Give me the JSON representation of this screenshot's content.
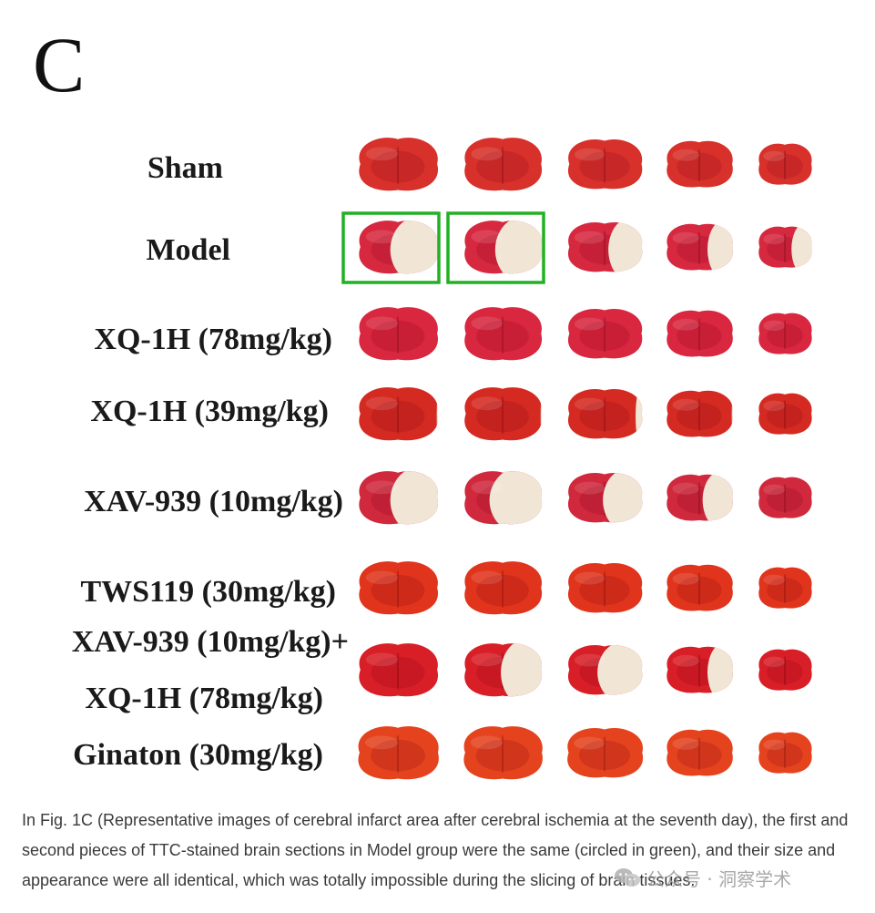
{
  "figure": {
    "panel_letter": "C",
    "rows": [
      {
        "label": "Sham",
        "highlight": [
          false,
          false,
          false,
          false,
          false
        ],
        "infarct": [
          0,
          0,
          0,
          0,
          0
        ],
        "tone": "#d8302a"
      },
      {
        "label": "Model",
        "highlight": [
          true,
          true,
          false,
          false,
          false
        ],
        "infarct": [
          0.45,
          0.45,
          0.35,
          0.3,
          0.3
        ],
        "tone": "#d6283f"
      },
      {
        "label": "XQ-1H (78mg/kg)",
        "highlight": [
          false,
          false,
          false,
          false,
          false
        ],
        "infarct": [
          0,
          0,
          0,
          0,
          0
        ],
        "tone": "#d9273f"
      },
      {
        "label": "XQ-1H (39mg/kg)",
        "highlight": [
          false,
          false,
          false,
          false,
          false
        ],
        "infarct": [
          0.05,
          0.05,
          0.1,
          0.05,
          0
        ],
        "tone": "#d42a22"
      },
      {
        "label": "XAV-939 (10mg/kg)",
        "highlight": [
          false,
          false,
          false,
          false,
          false
        ],
        "infarct": [
          0.45,
          0.5,
          0.4,
          0.35,
          0
        ],
        "tone": "#d0283c"
      },
      {
        "label": "TWS119 (30mg/kg)",
        "highlight": [
          false,
          false,
          false,
          false,
          false
        ],
        "infarct": [
          0,
          0,
          0,
          0,
          0
        ],
        "tone": "#e0341c"
      },
      {
        "label_lines": [
          "XAV-939 (10mg/kg)+",
          "XQ-1H (78mg/kg)"
        ],
        "highlight": [
          false,
          false,
          false,
          false,
          false
        ],
        "infarct": [
          0,
          0.4,
          0.45,
          0.3,
          0
        ],
        "tone": "#d81e26"
      },
      {
        "label": "Ginaton (30mg/kg)",
        "highlight": [
          false,
          false,
          false,
          false,
          false
        ],
        "infarct": [
          0,
          0,
          0,
          0,
          0
        ],
        "tone": "#e4431e"
      }
    ],
    "highlight_color": "#22b024"
  },
  "caption": {
    "text": "In Fig. 1C (Representative images of cerebral infarct area after cerebral ischemia at the seventh day), the first and second pieces of TTC-stained brain sections in Model group were the same (circled in green), and their size and appearance were all identical, which was totally impossible during the slicing of brain tissues."
  },
  "watermark": {
    "text": "公众号 · 洞察学术",
    "icon": "wechat-icon"
  }
}
